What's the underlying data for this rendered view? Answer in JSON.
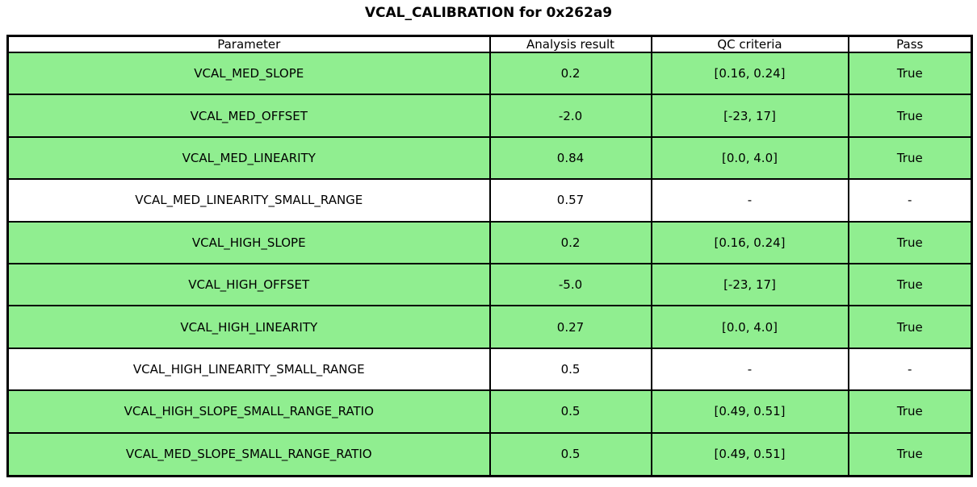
{
  "title": "VCAL_CALIBRATION for 0x262a9",
  "colors": {
    "pass_row_green": "#90ee90",
    "plain_row": "#ffffff",
    "border": "#000000",
    "text": "#000000"
  },
  "chart_data": {
    "type": "table",
    "title": "VCAL_CALIBRATION for 0x262a9",
    "columns": [
      "Parameter",
      "Analysis result",
      "QC criteria",
      "Pass"
    ],
    "rows": [
      {
        "parameter": "VCAL_MED_SLOPE",
        "analysis_result": "0.2",
        "qc_criteria": "[0.16, 0.24]",
        "pass": "True",
        "highlight": true
      },
      {
        "parameter": "VCAL_MED_OFFSET",
        "analysis_result": "-2.0",
        "qc_criteria": "[-23, 17]",
        "pass": "True",
        "highlight": true
      },
      {
        "parameter": "VCAL_MED_LINEARITY",
        "analysis_result": "0.84",
        "qc_criteria": "[0.0, 4.0]",
        "pass": "True",
        "highlight": true
      },
      {
        "parameter": "VCAL_MED_LINEARITY_SMALL_RANGE",
        "analysis_result": "0.57",
        "qc_criteria": "-",
        "pass": "-",
        "highlight": false
      },
      {
        "parameter": "VCAL_HIGH_SLOPE",
        "analysis_result": "0.2",
        "qc_criteria": "[0.16, 0.24]",
        "pass": "True",
        "highlight": true
      },
      {
        "parameter": "VCAL_HIGH_OFFSET",
        "analysis_result": "-5.0",
        "qc_criteria": "[-23, 17]",
        "pass": "True",
        "highlight": true
      },
      {
        "parameter": "VCAL_HIGH_LINEARITY",
        "analysis_result": "0.27",
        "qc_criteria": "[0.0, 4.0]",
        "pass": "True",
        "highlight": true
      },
      {
        "parameter": "VCAL_HIGH_LINEARITY_SMALL_RANGE",
        "analysis_result": "0.5",
        "qc_criteria": "-",
        "pass": "-",
        "highlight": false
      },
      {
        "parameter": "VCAL_HIGH_SLOPE_SMALL_RANGE_RATIO",
        "analysis_result": "0.5",
        "qc_criteria": "[0.49, 0.51]",
        "pass": "True",
        "highlight": true
      },
      {
        "parameter": "VCAL_MED_SLOPE_SMALL_RANGE_RATIO",
        "analysis_result": "0.5",
        "qc_criteria": "[0.49, 0.51]",
        "pass": "True",
        "highlight": true
      }
    ]
  }
}
